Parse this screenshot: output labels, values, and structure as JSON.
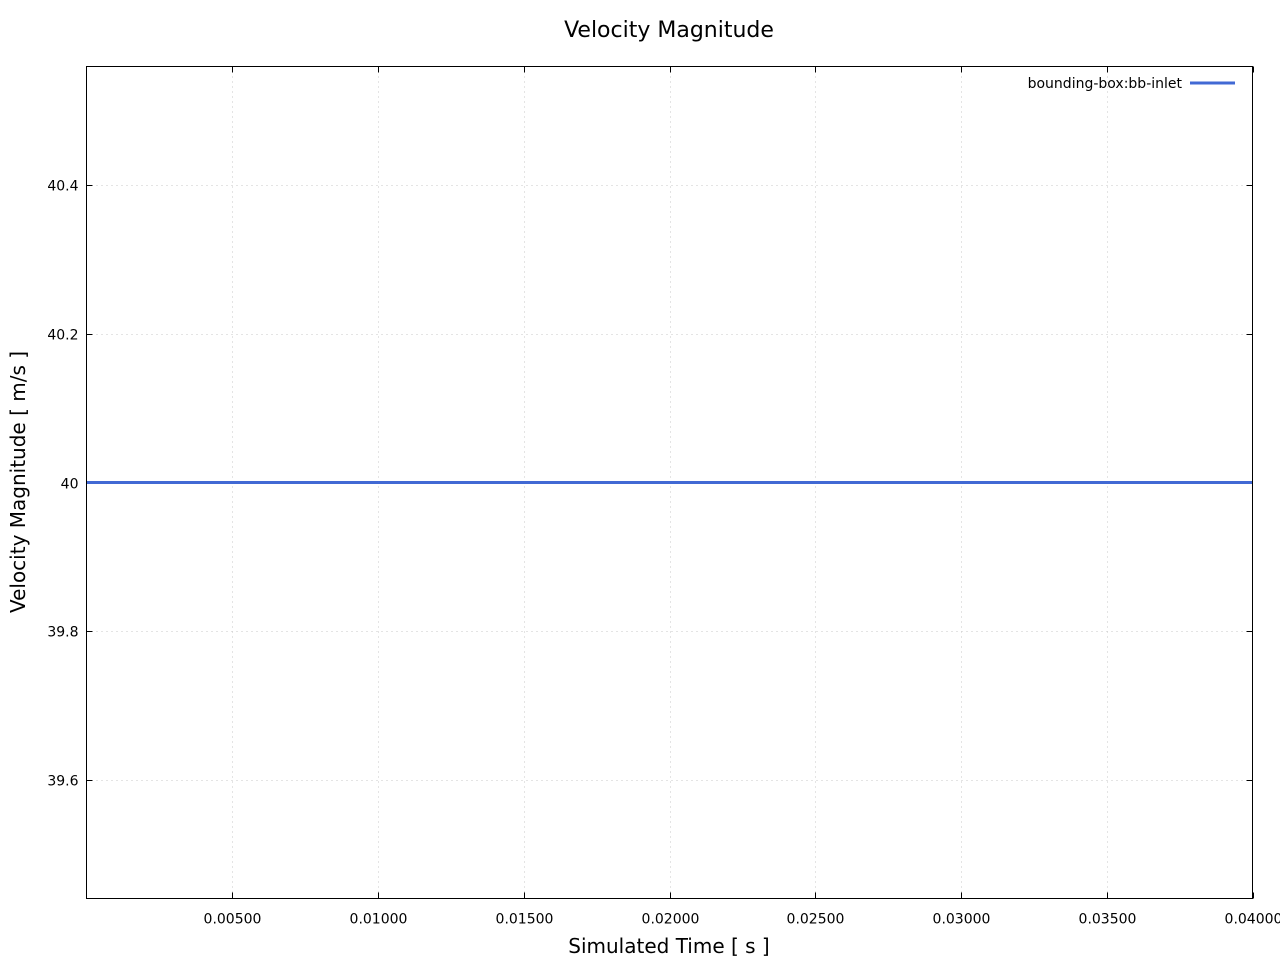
{
  "chart_data": {
    "type": "line",
    "title": "Velocity Magnitude",
    "xlabel": "Simulated Time [ s ]",
    "ylabel": "Velocity Magnitude [ m/s ]",
    "xlim": [
      0.0,
      0.04
    ],
    "ylim": [
      39.44,
      40.56
    ],
    "x_ticks": [
      0.005,
      0.01,
      0.015,
      0.02,
      0.025,
      0.03,
      0.035,
      0.04
    ],
    "x_tick_labels": [
      "0.00500",
      "0.01000",
      "0.01500",
      "0.02000",
      "0.02500",
      "0.03000",
      "0.03500",
      "0.04000"
    ],
    "y_ticks": [
      39.6,
      39.8,
      40.0,
      40.2,
      40.4
    ],
    "y_tick_labels": [
      "39.6",
      "39.8",
      "40",
      "40.2",
      "40.4"
    ],
    "grid": true,
    "legend_position": "top-right",
    "series": [
      {
        "name": "bounding-box:bb-inlet",
        "color": "#4169d4",
        "x": [
          0.0,
          0.005,
          0.01,
          0.015,
          0.02,
          0.025,
          0.03,
          0.035,
          0.04
        ],
        "y": [
          40.0,
          40.0,
          40.0,
          40.0,
          40.0,
          40.0,
          40.0,
          40.0,
          40.0
        ]
      }
    ]
  }
}
